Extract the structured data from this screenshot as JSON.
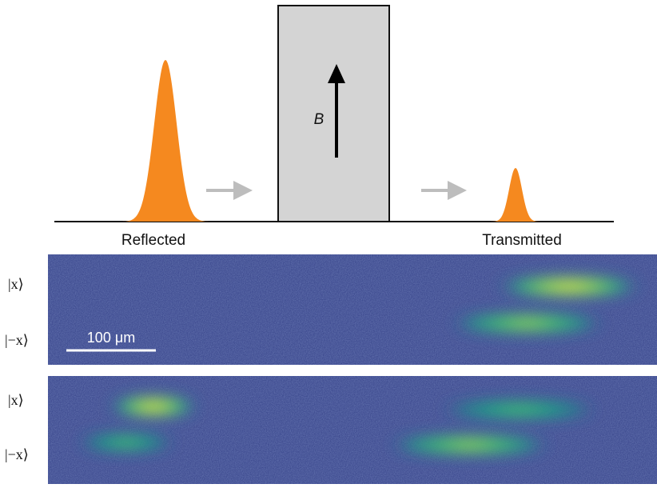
{
  "diagram": {
    "field_label": "B",
    "regions": [
      "Reflected",
      "Transmitted"
    ],
    "panels": [
      {
        "states": [
          "|x⟩",
          "|−x⟩"
        ],
        "scale_bar": "100 μm"
      },
      {
        "states": [
          "|x⟩",
          "|−x⟩"
        ]
      }
    ]
  }
}
